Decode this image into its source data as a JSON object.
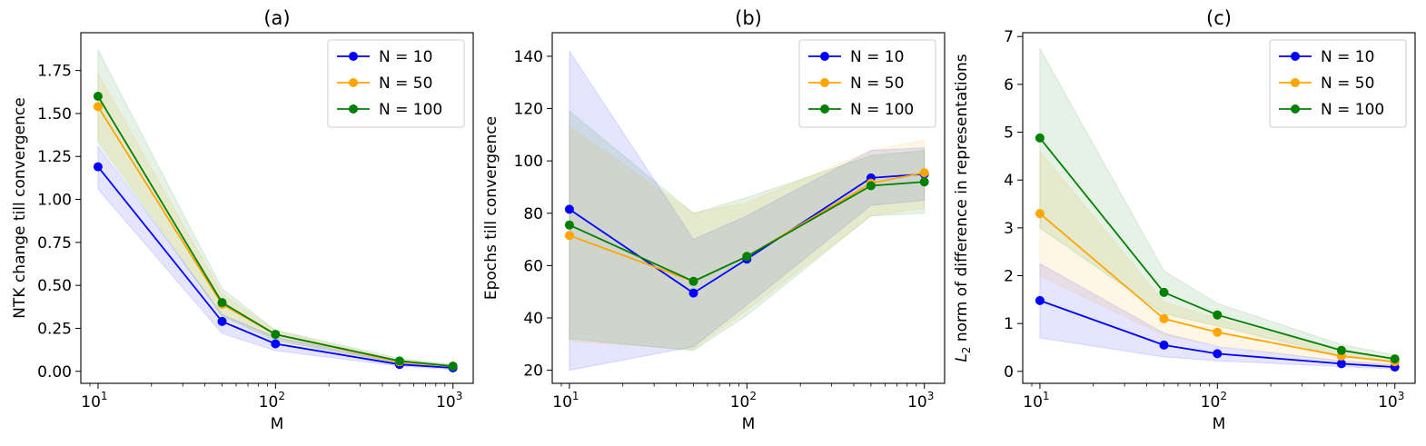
{
  "chart_data": [
    {
      "type": "line",
      "title": "(a)",
      "xlabel": "M",
      "ylabel": "NTK change till convergence",
      "xscale": "log",
      "xlim": [
        8,
        1300
      ],
      "ylim": [
        -0.07,
        1.97
      ],
      "x": [
        10,
        50,
        100,
        500,
        1000
      ],
      "xticks": [
        {
          "value": 10,
          "base": "10",
          "exp": "1"
        },
        {
          "value": 100,
          "base": "10",
          "exp": "2"
        },
        {
          "value": 1000,
          "base": "10",
          "exp": "3"
        }
      ],
      "yticks": [
        {
          "value": 0.0,
          "label": "0.00"
        },
        {
          "value": 0.25,
          "label": "0.25"
        },
        {
          "value": 0.5,
          "label": "0.50"
        },
        {
          "value": 0.75,
          "label": "0.75"
        },
        {
          "value": 1.0,
          "label": "1.00"
        },
        {
          "value": 1.25,
          "label": "1.25"
        },
        {
          "value": 1.5,
          "label": "1.50"
        },
        {
          "value": 1.75,
          "label": "1.75"
        }
      ],
      "legend_position": "top-right",
      "series": [
        {
          "name": "N = 10",
          "color": "#0000ff",
          "values": [
            1.19,
            0.29,
            0.16,
            0.04,
            0.02
          ],
          "lower": [
            1.06,
            0.22,
            0.12,
            0.03,
            0.01
          ],
          "upper": [
            1.31,
            0.33,
            0.2,
            0.05,
            0.03
          ]
        },
        {
          "name": "N = 50",
          "color": "#ffa500",
          "values": [
            1.54,
            0.39,
            0.215,
            0.055,
            0.03
          ],
          "lower": [
            1.35,
            0.33,
            0.19,
            0.045,
            0.02
          ],
          "upper": [
            1.73,
            0.45,
            0.235,
            0.065,
            0.04
          ]
        },
        {
          "name": "N = 100",
          "color": "#008000",
          "values": [
            1.6,
            0.4,
            0.215,
            0.06,
            0.03
          ],
          "lower": [
            1.33,
            0.32,
            0.18,
            0.045,
            0.02
          ],
          "upper": [
            1.87,
            0.48,
            0.24,
            0.075,
            0.04
          ]
        }
      ]
    },
    {
      "type": "line",
      "title": "(b)",
      "xlabel": "M",
      "ylabel": "Epochs till convergence",
      "xscale": "log",
      "xlim": [
        8,
        1300
      ],
      "ylim": [
        15,
        149
      ],
      "x": [
        10,
        50,
        100,
        500,
        1000
      ],
      "xticks": [
        {
          "value": 10,
          "base": "10",
          "exp": "1"
        },
        {
          "value": 100,
          "base": "10",
          "exp": "2"
        },
        {
          "value": 1000,
          "base": "10",
          "exp": "3"
        }
      ],
      "yticks": [
        {
          "value": 20,
          "label": "20"
        },
        {
          "value": 40,
          "label": "40"
        },
        {
          "value": 60,
          "label": "60"
        },
        {
          "value": 80,
          "label": "80"
        },
        {
          "value": 100,
          "label": "100"
        },
        {
          "value": 120,
          "label": "120"
        },
        {
          "value": 140,
          "label": "140"
        }
      ],
      "legend_position": "top-right",
      "series": [
        {
          "name": "N = 10",
          "color": "#0000ff",
          "values": [
            81.5,
            49.5,
            62.5,
            93.5,
            95
          ],
          "lower": [
            20,
            29,
            45,
            83,
            85
          ],
          "upper": [
            142,
            70,
            79,
            104,
            105
          ]
        },
        {
          "name": "N = 50",
          "color": "#ffa500",
          "values": [
            71.5,
            54,
            63.5,
            91.5,
            95.5
          ],
          "lower": [
            31,
            28,
            43,
            79,
            82
          ],
          "upper": [
            113,
            80,
            84,
            104,
            108
          ]
        },
        {
          "name": "N = 100",
          "color": "#008000",
          "values": [
            75.5,
            54,
            63.5,
            90.5,
            92
          ],
          "lower": [
            32,
            27.5,
            41,
            79,
            80
          ],
          "upper": [
            119,
            80,
            86,
            102,
            104
          ]
        }
      ]
    },
    {
      "type": "line",
      "title": "(c)",
      "xlabel": "M",
      "ylabel_prefix": "L",
      "ylabel_sub": "2",
      "ylabel_rest": " norm of difference in representations",
      "xscale": "log",
      "xlim": [
        8,
        1300
      ],
      "ylim": [
        -0.25,
        7.08
      ],
      "x": [
        10,
        50,
        100,
        500,
        1000
      ],
      "xticks": [
        {
          "value": 10,
          "base": "10",
          "exp": "1"
        },
        {
          "value": 100,
          "base": "10",
          "exp": "2"
        },
        {
          "value": 1000,
          "base": "10",
          "exp": "3"
        }
      ],
      "yticks": [
        {
          "value": 0,
          "label": "0"
        },
        {
          "value": 1,
          "label": "1"
        },
        {
          "value": 2,
          "label": "2"
        },
        {
          "value": 3,
          "label": "3"
        },
        {
          "value": 4,
          "label": "4"
        },
        {
          "value": 5,
          "label": "5"
        },
        {
          "value": 6,
          "label": "6"
        },
        {
          "value": 7,
          "label": "7"
        }
      ],
      "legend_position": "top-right",
      "series": [
        {
          "name": "N = 10",
          "color": "#0000ff",
          "values": [
            1.48,
            0.55,
            0.37,
            0.16,
            0.09
          ],
          "lower": [
            0.7,
            0.3,
            0.22,
            0.1,
            0.05
          ],
          "upper": [
            2.25,
            0.8,
            0.52,
            0.22,
            0.14
          ]
        },
        {
          "name": "N = 50",
          "color": "#ffa500",
          "values": [
            3.3,
            1.1,
            0.82,
            0.32,
            0.2
          ],
          "lower": [
            2.0,
            0.75,
            0.55,
            0.2,
            0.12
          ],
          "upper": [
            4.6,
            1.45,
            1.1,
            0.44,
            0.28
          ]
        },
        {
          "name": "N = 100",
          "color": "#008000",
          "values": [
            4.88,
            1.65,
            1.18,
            0.44,
            0.26
          ],
          "lower": [
            3.0,
            1.2,
            0.95,
            0.32,
            0.18
          ],
          "upper": [
            6.75,
            2.1,
            1.42,
            0.56,
            0.34
          ]
        }
      ]
    }
  ]
}
